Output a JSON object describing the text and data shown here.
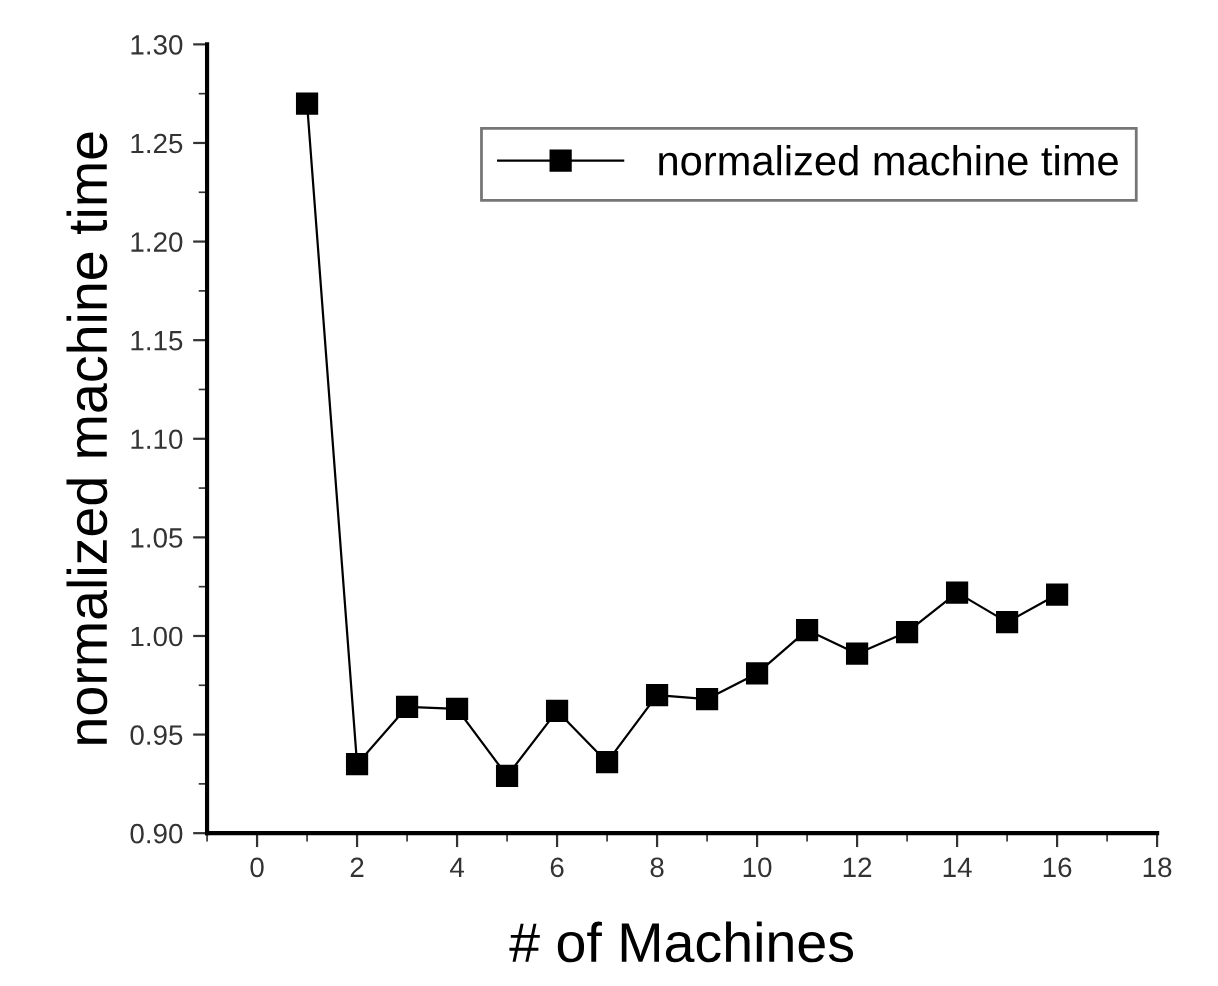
{
  "chart_data": {
    "type": "line",
    "xlabel": "# of Machines",
    "ylabel": "normalized machine time",
    "x": [
      1,
      2,
      3,
      4,
      5,
      6,
      7,
      8,
      9,
      10,
      11,
      12,
      13,
      14,
      15,
      16
    ],
    "series": [
      {
        "name": "normalized machine time",
        "color": "#000000",
        "values": [
          1.27,
          0.935,
          0.964,
          0.963,
          0.929,
          0.962,
          0.936,
          0.97,
          0.968,
          0.981,
          1.003,
          0.991,
          1.002,
          1.022,
          1.007,
          1.021
        ]
      }
    ],
    "xlim": [
      -1,
      18
    ],
    "xticks": [
      0,
      2,
      4,
      6,
      8,
      10,
      12,
      14,
      16,
      18
    ],
    "ylim": [
      0.9,
      1.3
    ],
    "yticks": [
      {
        "value": 0.9,
        "label": "0.90"
      },
      {
        "value": 0.95,
        "label": "0.95"
      },
      {
        "value": 1.0,
        "label": "1.00"
      },
      {
        "value": 1.05,
        "label": "1.05"
      },
      {
        "value": 1.1,
        "label": "1.10"
      },
      {
        "value": 1.15,
        "label": "1.15"
      },
      {
        "value": 1.2,
        "label": "1.20"
      },
      {
        "value": 1.25,
        "label": "1.25"
      },
      {
        "value": 1.3,
        "label": "1.30"
      }
    ],
    "grid": false,
    "legend": "top right",
    "marker": "square",
    "line_style": "solid"
  }
}
